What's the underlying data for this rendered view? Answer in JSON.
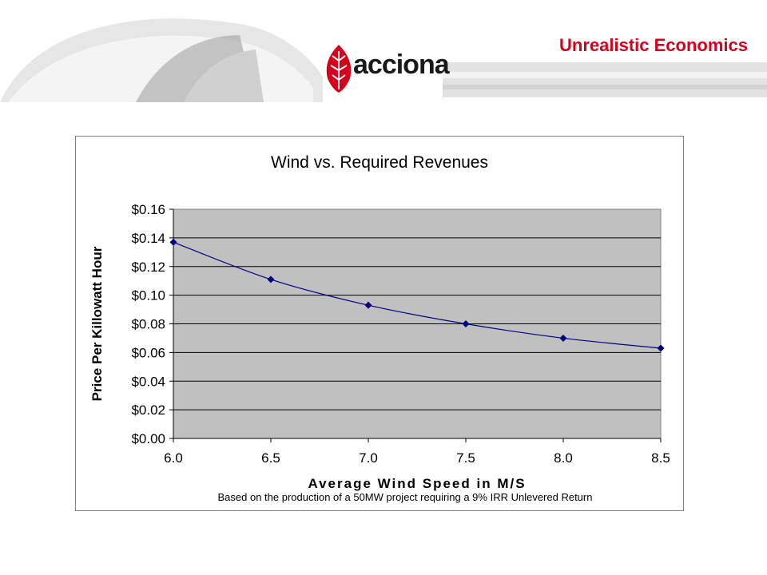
{
  "slide": {
    "title": "Unrealistic Economics",
    "logo_text": "acciona"
  },
  "colors": {
    "title_red": "#d6001c",
    "logo_red": "#d6001c",
    "plot_bg": "#c0c0c0",
    "series_color": "#000080"
  },
  "chart_data": {
    "type": "line",
    "title": "Wind vs. Required Revenues",
    "xlabel": "Average Wind Speed in M/S",
    "ylabel": "Price Per Killowatt Hour",
    "note": "Based on the production  of a 50MW project requiring a 9% IRR Unlevered Return",
    "x": [
      6.0,
      6.5,
      7.0,
      7.5,
      8.0,
      8.5
    ],
    "series": [
      {
        "values": [
          0.137,
          0.111,
          0.093,
          0.08,
          0.07,
          0.063
        ]
      }
    ],
    "xlim": [
      6.0,
      8.5
    ],
    "ylim": [
      0.0,
      0.16
    ],
    "x_ticks": [
      "6.0",
      "6.5",
      "7.0",
      "7.5",
      "8.0",
      "8.5"
    ],
    "y_ticks": [
      "$0.00",
      "$0.02",
      "$0.04",
      "$0.06",
      "$0.08",
      "$0.10",
      "$0.12",
      "$0.14",
      "$0.16"
    ],
    "grid": true,
    "legend": "none"
  }
}
